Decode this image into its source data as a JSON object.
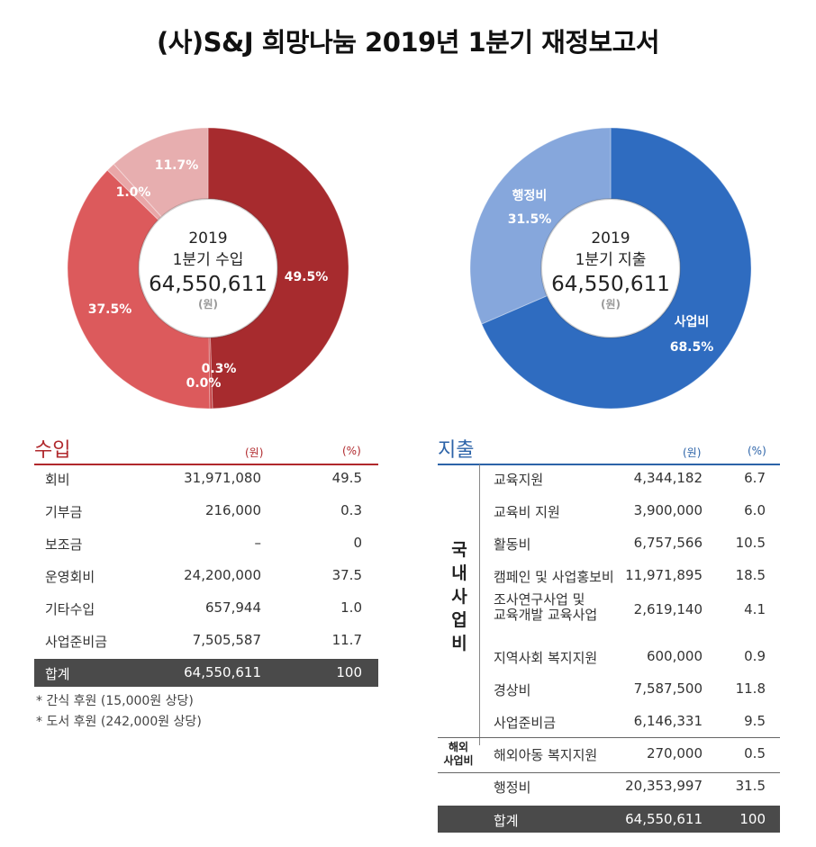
{
  "title": "(사)S&J 희망나눔 2019년 1분기 재정보고서",
  "chart_data": [
    {
      "type": "pie",
      "center": {
        "line1": "2019",
        "line2": "1분기 수입",
        "total": "64,550,611",
        "unit": "(원)"
      },
      "slices": [
        {
          "label": "49.5%",
          "value": 49.5,
          "color": "#a72b2e"
        },
        {
          "label": "0.3%",
          "value": 0.3,
          "color": "#c23b3e"
        },
        {
          "label": "0.0%",
          "value": 0.0,
          "color": "#c23b3e"
        },
        {
          "label": "37.5%",
          "value": 37.5,
          "color": "#dc5a5c"
        },
        {
          "label": "1.0%",
          "value": 1.0,
          "color": "#e9a7a8"
        },
        {
          "label": "11.7%",
          "value": 11.7,
          "color": "#e7aeaf"
        }
      ]
    },
    {
      "type": "pie",
      "center": {
        "line1": "2019",
        "line2": "1분기 지출",
        "total": "64,550,611",
        "unit": "(원)"
      },
      "slices": [
        {
          "name": "사업비",
          "label": "68.5%",
          "value": 68.5,
          "color": "#2f6cc0"
        },
        {
          "name": "행정비",
          "label": "31.5%",
          "value": 31.5,
          "color": "#86a7dc"
        }
      ]
    }
  ],
  "income": {
    "heading": "수입",
    "unit_won": "(원)",
    "unit_pct": "(%)",
    "rows": [
      {
        "name": "회비",
        "amount": "31,971,080",
        "pct": "49.5"
      },
      {
        "name": "기부금",
        "amount": "216,000",
        "pct": "0.3"
      },
      {
        "name": "보조금",
        "amount": "–",
        "pct": "0"
      },
      {
        "name": "운영회비",
        "amount": "24,200,000",
        "pct": "37.5"
      },
      {
        "name": "기타수입",
        "amount": "657,944",
        "pct": "1.0"
      },
      {
        "name": "사업준비금",
        "amount": "7,505,587",
        "pct": "11.7"
      }
    ],
    "total": {
      "name": "합계",
      "amount": "64,550,611",
      "pct": "100"
    },
    "notes": [
      "* 간식 후원 (15,000원 상당)",
      "* 도서 후원 (242,000원 상당)"
    ]
  },
  "expense": {
    "heading": "지출",
    "unit_won": "(원)",
    "unit_pct": "(%)",
    "group_domestic": "국내사업비",
    "group_overseas_l1": "해외",
    "group_overseas_l2": "사업비",
    "rows": [
      {
        "name": "교육지원",
        "amount": "4,344,182",
        "pct": "6.7"
      },
      {
        "name": "교육비 지원",
        "amount": "3,900,000",
        "pct": "6.0"
      },
      {
        "name": "활동비",
        "amount": "6,757,566",
        "pct": "10.5"
      },
      {
        "name": "캠페인 및 사업홍보비",
        "amount": "11,971,895",
        "pct": "18.5"
      },
      {
        "name": "조사연구사업 및",
        "name2": "교육개발 교육사업",
        "amount": "2,619,140",
        "pct": "4.1"
      },
      {
        "name": "지역사회 복지지원",
        "amount": "600,000",
        "pct": "0.9"
      },
      {
        "name": "경상비",
        "amount": "7,587,500",
        "pct": "11.8"
      },
      {
        "name": "사업준비금",
        "amount": "6,146,331",
        "pct": "9.5"
      },
      {
        "name": "해외아동 복지지원",
        "amount": "270,000",
        "pct": "0.5"
      },
      {
        "name": "행정비",
        "amount": "20,353,997",
        "pct": "31.5"
      }
    ],
    "total": {
      "name": "합계",
      "amount": "64,550,611",
      "pct": "100"
    }
  }
}
